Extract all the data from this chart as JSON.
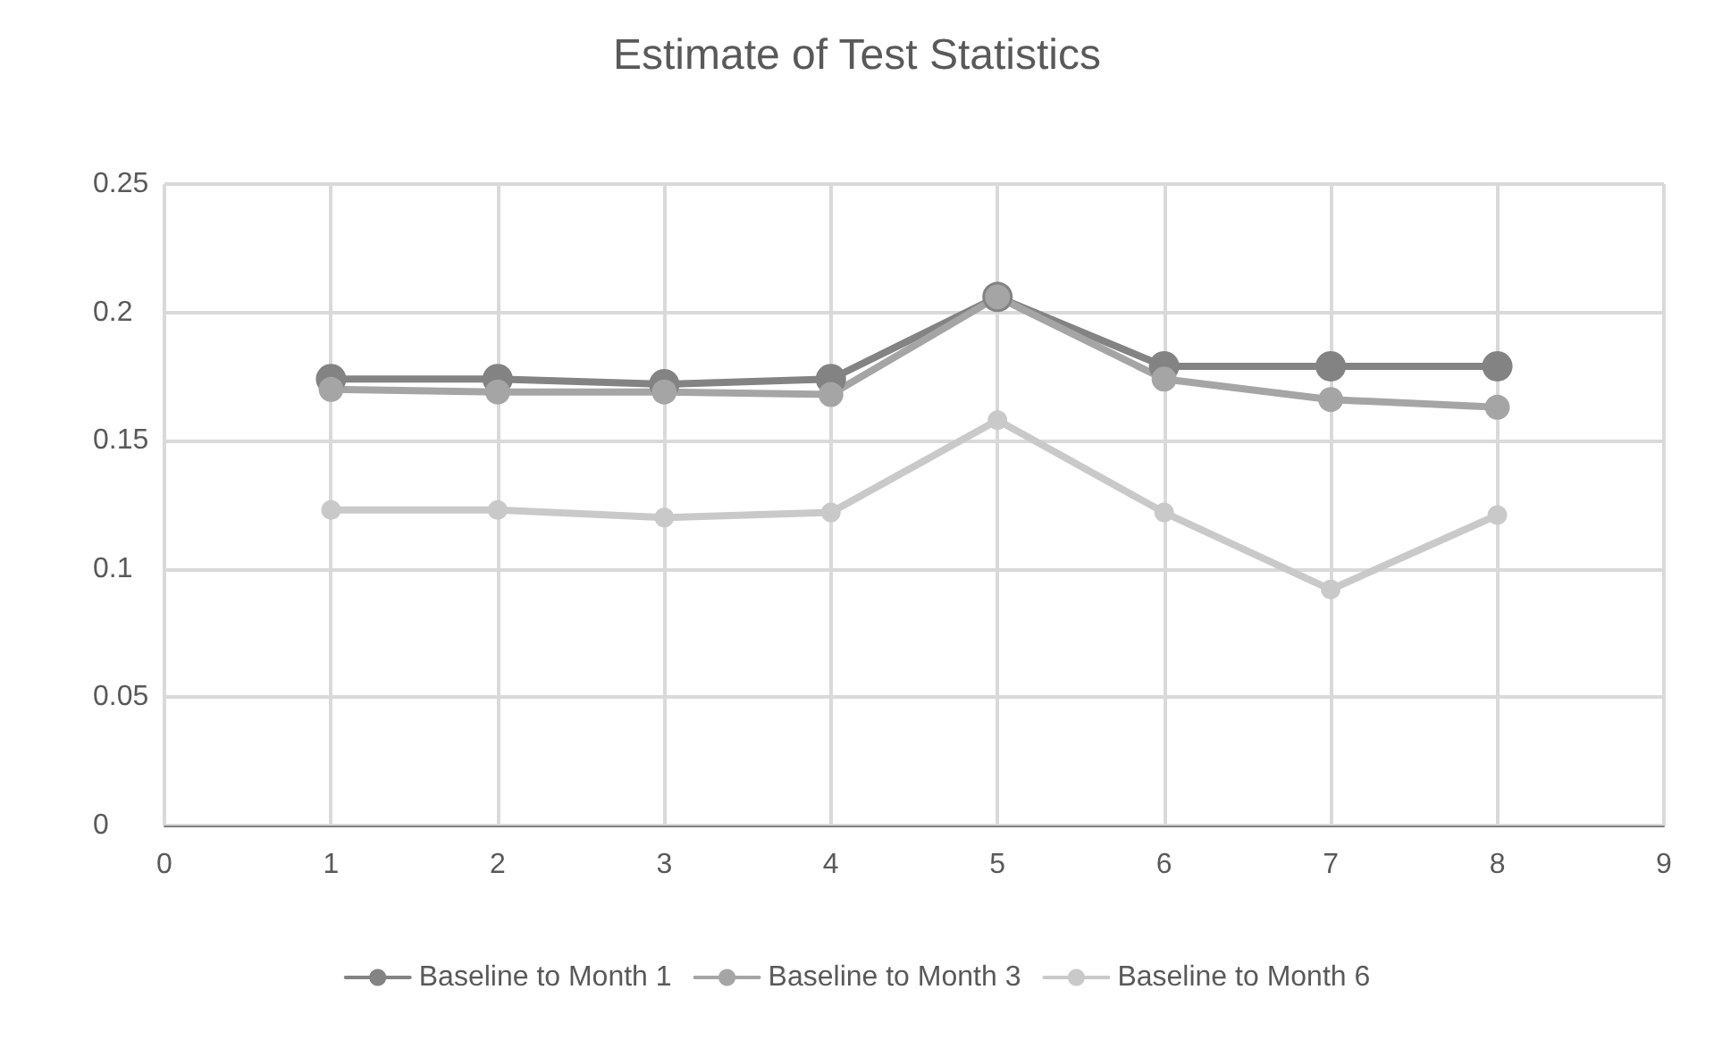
{
  "chart_data": {
    "type": "line",
    "title": "Estimate of Test Statistics",
    "x": [
      1,
      2,
      3,
      4,
      5,
      6,
      7,
      8
    ],
    "series": [
      {
        "name": "Baseline to Month 1",
        "color": "#838383",
        "values": [
          0.174,
          0.174,
          0.172,
          0.174,
          0.206,
          0.179,
          0.179,
          0.179
        ]
      },
      {
        "name": "Baseline to Month 3",
        "color": "#a5a5a5",
        "values": [
          0.17,
          0.169,
          0.169,
          0.168,
          0.206,
          0.174,
          0.166,
          0.163
        ]
      },
      {
        "name": "Baseline to Month 6",
        "color": "#c9c9c9",
        "values": [
          0.123,
          0.123,
          0.12,
          0.122,
          0.158,
          0.122,
          0.092,
          0.121
        ]
      }
    ],
    "xlim": [
      0,
      9
    ],
    "xticks": [
      0,
      1,
      2,
      3,
      4,
      5,
      6,
      7,
      8,
      9
    ],
    "ylim": [
      0,
      0.25
    ],
    "yticks": [
      0,
      0.05,
      0.1,
      0.15,
      0.2,
      0.25
    ],
    "grid": true,
    "legend": "bottom",
    "marker": "circle",
    "line_style": "solid"
  }
}
